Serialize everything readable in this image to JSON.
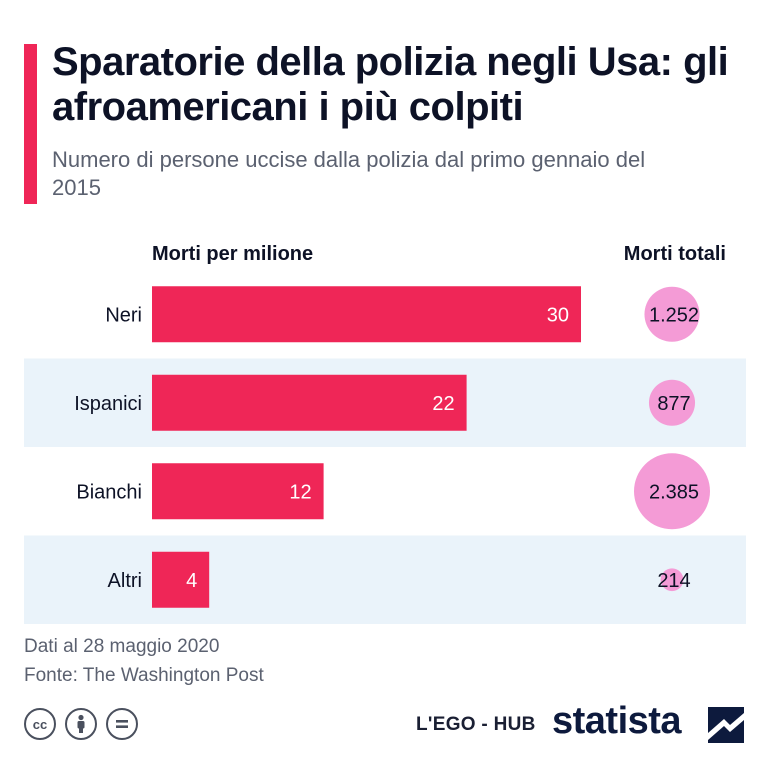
{
  "header": {
    "title": "Sparatorie della polizia negli Usa: gli afroamericani i più colpiti",
    "subtitle": "Numero di persone uccise dalla polizia dal primo gennaio del 2015"
  },
  "colors": {
    "accent": "#ef2657",
    "bubble": "#f49bd6",
    "row_band": "#eaf3fa",
    "bar_label": "#ffffff"
  },
  "chart_data": {
    "type": "bar",
    "orientation": "horizontal",
    "column_headers": {
      "bars": "Morti per milione",
      "bubbles": "Morti totali"
    },
    "categories": [
      "Neri",
      "Ispanici",
      "Bianchi",
      "Altri"
    ],
    "series": [
      {
        "name": "Morti per milione",
        "values": [
          30,
          22,
          12,
          4
        ],
        "labels": [
          "30",
          "22",
          "12",
          "4"
        ]
      },
      {
        "name": "Morti totali",
        "values": [
          1252,
          877,
          2385,
          214
        ],
        "labels": [
          "1.252",
          "877",
          "2.385",
          "214"
        ]
      }
    ],
    "xlim": [
      0,
      30
    ],
    "grid": false,
    "legend": "none"
  },
  "footer": {
    "note": "Dati al 28 maggio 2020",
    "source": "Fonte: The Washington Post"
  },
  "license_icons": [
    "cc-icon",
    "attribution-icon",
    "no-derivatives-icon"
  ],
  "branding": {
    "partner": "L'EGO - HUB",
    "logo": "statista"
  }
}
